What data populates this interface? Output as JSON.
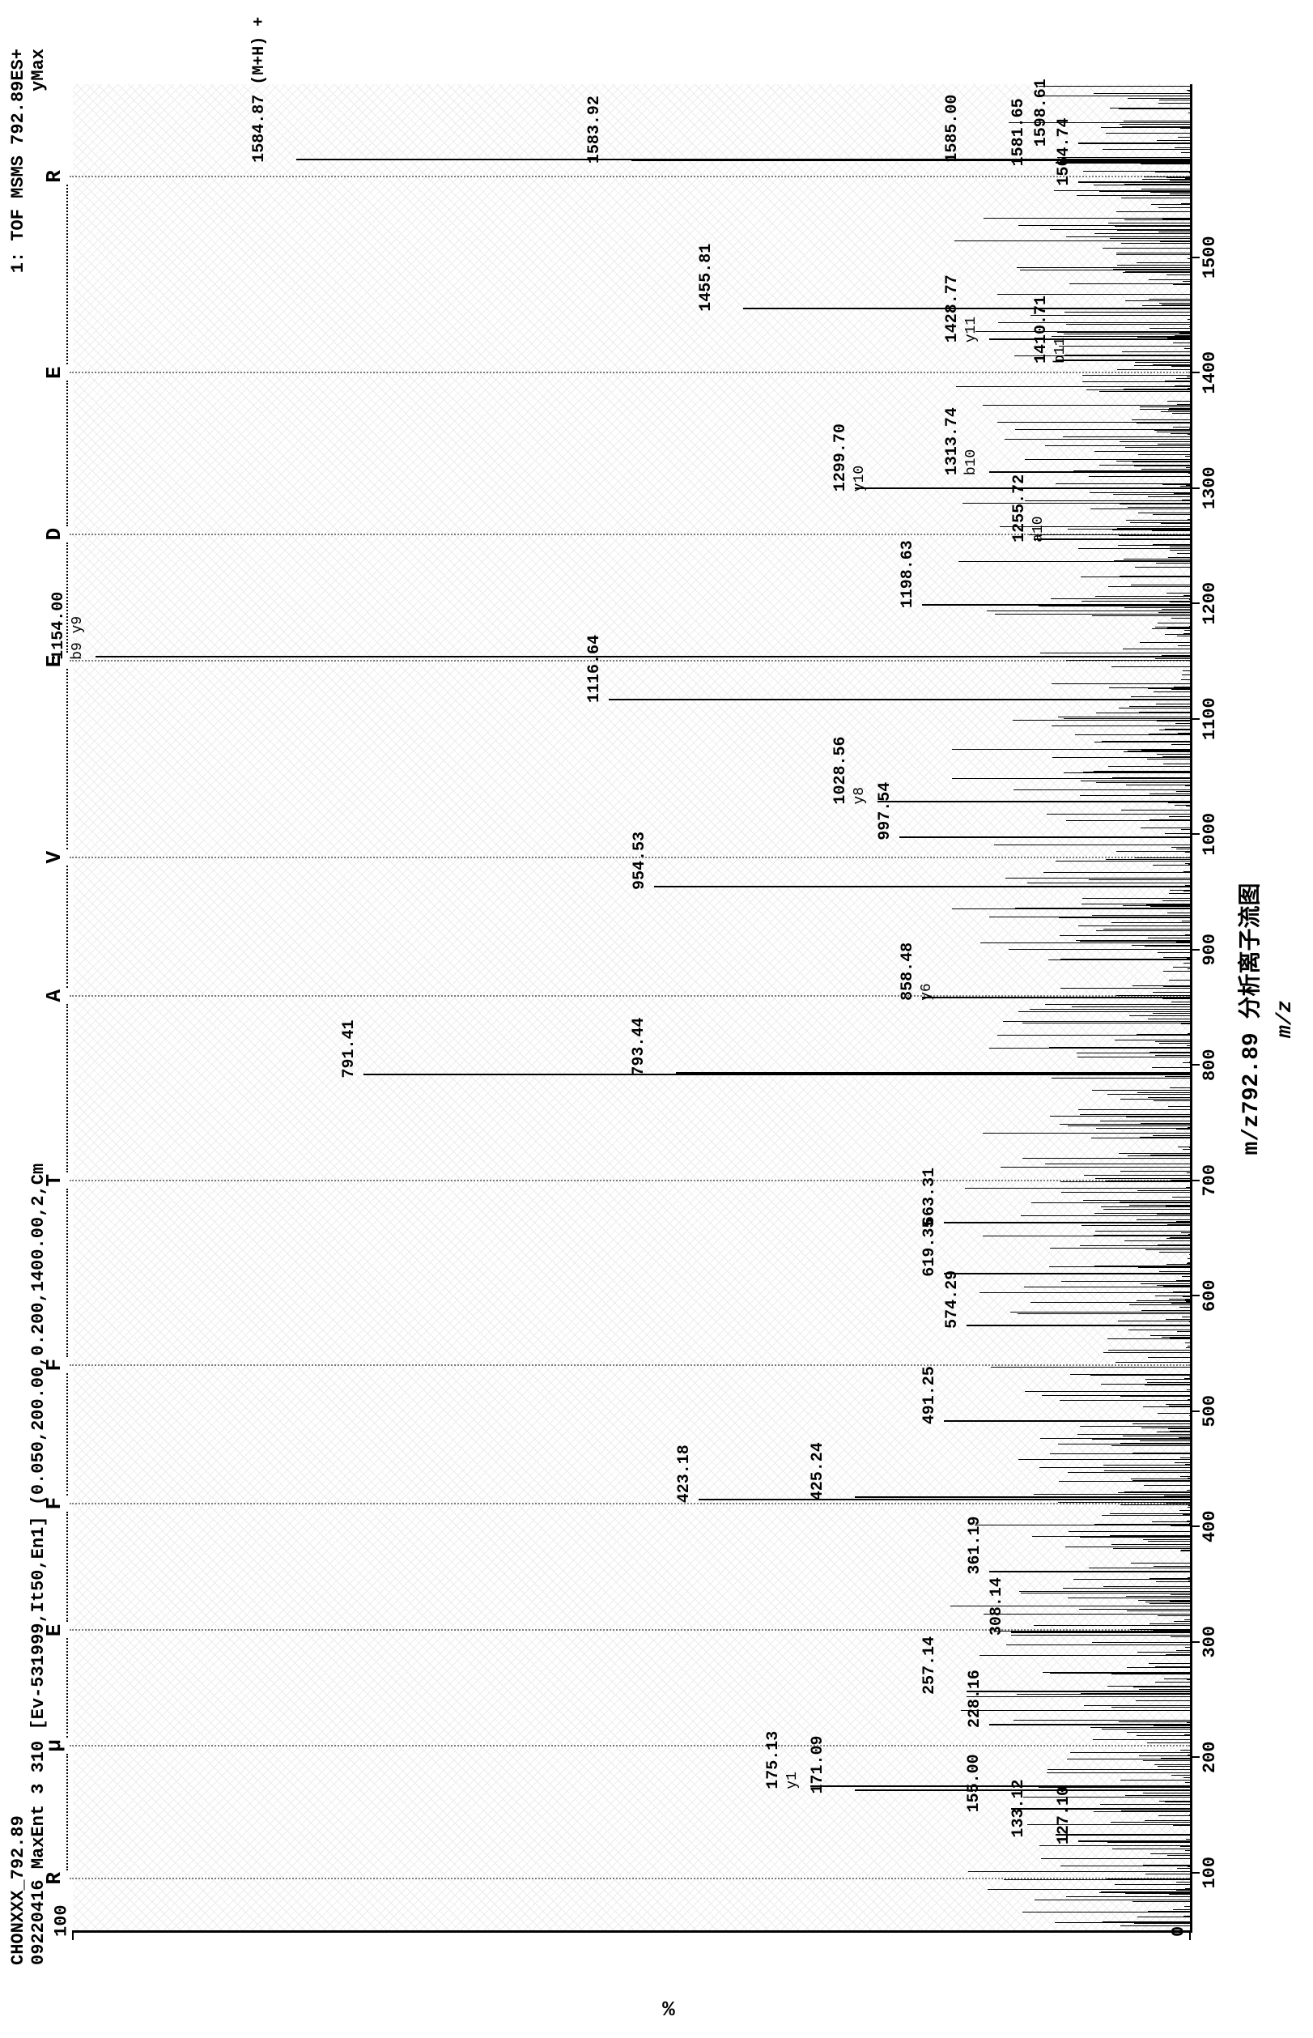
{
  "meta": {
    "header_line1": "CHONXXX_792.89",
    "header_line2": "09220416   MaxEnt 3  310 [Ev-531999,It50,En1] (0.050,200.00,0.200,1400.00,2,Cm",
    "right_line1": "1: TOF MSMS 792.89ES+",
    "right_line2": "yMax"
  },
  "axes": {
    "ylabel": "%",
    "xlabel_main": "m/z",
    "xlim": [
      50,
      1650
    ],
    "ylim": [
      0,
      100
    ],
    "xticks": [
      100,
      200,
      300,
      400,
      500,
      600,
      700,
      800,
      900,
      1000,
      1100,
      1200,
      1300,
      1400,
      1500
    ],
    "yticks": [
      0,
      100
    ],
    "grid_color": "#000000",
    "background_color": "#ffffff",
    "peak_color": "#000000",
    "label_fontsize": 22,
    "tick_fontsize": 22,
    "title_fontsize": 22,
    "line_width": 2
  },
  "caption": "m/z792.89 分析离子流图",
  "sequence": {
    "letters": [
      "R",
      "μ",
      "E",
      "F",
      "F",
      "T",
      "A",
      "V",
      "E",
      "D",
      "E",
      "R"
    ],
    "positions_mz": [
      95,
      210,
      310,
      420,
      540,
      700,
      860,
      980,
      1150,
      1260,
      1400,
      1570
    ],
    "dotted_color": "#000000"
  },
  "noise": {
    "count": 900,
    "max_height_pct": 22,
    "color": "#000000",
    "seed": 42
  },
  "peaks": [
    {
      "mz": 127.1,
      "intensity": 10,
      "label": "127.10"
    },
    {
      "mz": 133.12,
      "intensity": 12,
      "label": "133.12"
    },
    {
      "mz": 155.0,
      "intensity": 16,
      "label": "155.00"
    },
    {
      "mz": 171.09,
      "intensity": 30,
      "label": "171.09"
    },
    {
      "mz": 175.13,
      "intensity": 34,
      "label": "175.13",
      "sub": "y1"
    },
    {
      "mz": 228.16,
      "intensity": 18,
      "label": "228.16"
    },
    {
      "mz": 257.14,
      "intensity": 20,
      "label": "257.14"
    },
    {
      "mz": 308.14,
      "intensity": 16,
      "label": "308.14"
    },
    {
      "mz": 361.19,
      "intensity": 18,
      "label": "361.19"
    },
    {
      "mz": 423.18,
      "intensity": 44,
      "label": "423.18"
    },
    {
      "mz": 425.24,
      "intensity": 30,
      "label": "425.24"
    },
    {
      "mz": 491.25,
      "intensity": 22,
      "label": "491.25"
    },
    {
      "mz": 574.29,
      "intensity": 20,
      "label": "574.29"
    },
    {
      "mz": 619.35,
      "intensity": 22,
      "label": "619.35"
    },
    {
      "mz": 663.31,
      "intensity": 22,
      "label": "663.31"
    },
    {
      "mz": 791.41,
      "intensity": 74,
      "label": "791.41"
    },
    {
      "mz": 793.44,
      "intensity": 46,
      "label": "793.44"
    },
    {
      "mz": 858.48,
      "intensity": 24,
      "label": "858.48",
      "sub": "y6"
    },
    {
      "mz": 954.53,
      "intensity": 48,
      "label": "954.53"
    },
    {
      "mz": 997.54,
      "intensity": 26,
      "label": "997.54"
    },
    {
      "mz": 1028.56,
      "intensity": 28,
      "label": "1028.56",
      "sub": "y8"
    },
    {
      "mz": 1116.64,
      "intensity": 52,
      "label": "1116.64"
    },
    {
      "mz": 1154.0,
      "intensity": 98,
      "label": "1154.00",
      "sub": "b9  y9"
    },
    {
      "mz": 1198.63,
      "intensity": 24,
      "label": "1198.63"
    },
    {
      "mz": 1255.72,
      "intensity": 14,
      "label": "1255.72",
      "sub": "a10"
    },
    {
      "mz": 1299.7,
      "intensity": 30,
      "label": "1299.70",
      "sub": "y10"
    },
    {
      "mz": 1313.74,
      "intensity": 18,
      "label": "1313.74",
      "sub": "b10"
    },
    {
      "mz": 1410.71,
      "intensity": 12,
      "label": "1410.71",
      "sub": "b11"
    },
    {
      "mz": 1428.77,
      "intensity": 18,
      "label": "1428.77",
      "sub": "y11"
    },
    {
      "mz": 1455.81,
      "intensity": 40,
      "label": "1455.81"
    },
    {
      "mz": 1564.74,
      "intensity": 10,
      "label": "1564.74"
    },
    {
      "mz": 1581.65,
      "intensity": 12,
      "label": "1581.65"
    },
    {
      "mz": 1583.92,
      "intensity": 50,
      "label": "1583.92"
    },
    {
      "mz": 1584.87,
      "intensity": 80,
      "label": "1584.87 (M+H) +"
    },
    {
      "mz": 1585.0,
      "intensity": 18,
      "label": "1585.00"
    },
    {
      "mz": 1598.61,
      "intensity": 10,
      "label": "1598.61"
    }
  ]
}
